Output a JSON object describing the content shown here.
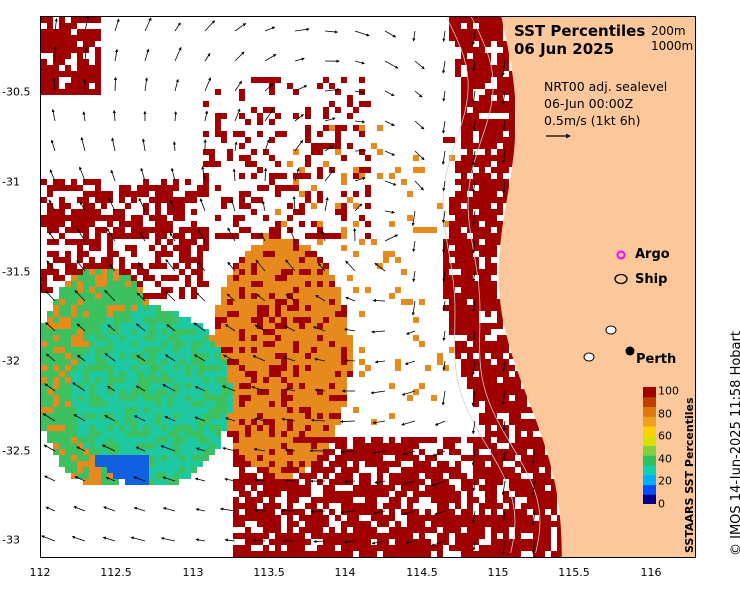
{
  "title": {
    "line1": "SST Percentiles",
    "line2": "06 Jun 2025"
  },
  "depth_legend": {
    "contour1": "200m",
    "contour2": "1000m"
  },
  "info": {
    "line1": "NRT00 adj. sealevel",
    "line2": "06-Jun 00:00Z",
    "line3": "0.5m/s (1kt 6h)"
  },
  "markers": {
    "argo": "Argo",
    "ship": "Ship",
    "city": "Perth"
  },
  "axes": {
    "x_ticks": [
      "112",
      "112.5",
      "113",
      "113.5",
      "114",
      "114.5",
      "115",
      "115.5",
      "116"
    ],
    "y_ticks": [
      "-30.5",
      "-31",
      "-31.5",
      "-32",
      "-32.5",
      "-33"
    ]
  },
  "colorbar": {
    "title": "SSTAARS SST Percentiles",
    "ticks": [
      "100",
      "80",
      "60",
      "40",
      "20",
      "0"
    ],
    "colors": [
      "#00008b",
      "#0050ff",
      "#00b0ff",
      "#10d0b0",
      "#30c060",
      "#80d040",
      "#d8e000",
      "#ffd000",
      "#f0a020",
      "#e07810",
      "#c04000",
      "#a00000"
    ]
  },
  "colors": {
    "land": "#fcc89b",
    "high": "#a00000",
    "orange": "#e68a1e",
    "green": "#3cc060",
    "teal": "#1ec8a0",
    "blue": "#1060e0",
    "argo_marker": "#ff00ff"
  },
  "credit": "© IMOS 14-Jun-2025 11:58 Hobart"
}
